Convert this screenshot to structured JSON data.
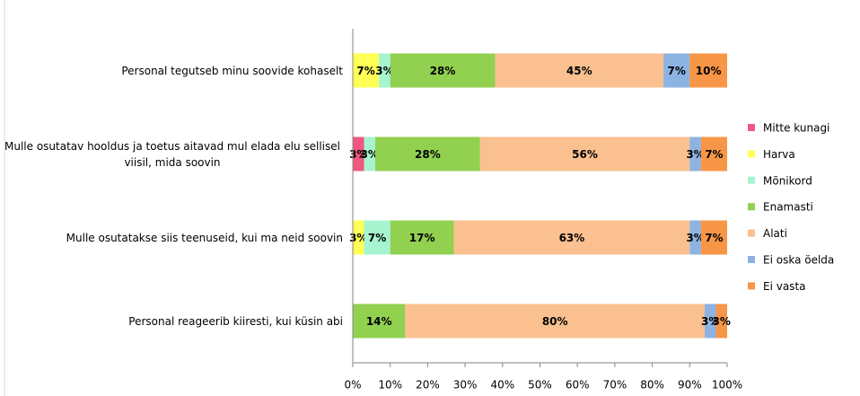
{
  "chart_data": {
    "type": "stacked_barh",
    "categories": [
      "Personal tegutseb minu soovide kohaselt",
      "Mulle osutatav hooldus ja toetus aitavad mul elada elu sellisel viisil, mida soovin",
      "Mulle osutatakse siis teenuseid, kui ma neid soovin",
      "Personal reageerib kiiresti, kui küsin abi"
    ],
    "series": [
      {
        "name": "Mitte kunagi",
        "color": "#f0587f",
        "values": [
          null,
          3,
          null,
          null
        ],
        "value_labels": [
          null,
          "3%",
          null,
          null
        ]
      },
      {
        "name": "Harva",
        "color": "#ffff55",
        "values": [
          7,
          null,
          3,
          null
        ],
        "value_labels": [
          "7%",
          null,
          "3%",
          null
        ]
      },
      {
        "name": "Mõnikord",
        "color": "#a6f5d0",
        "values": [
          3,
          3,
          7,
          null
        ],
        "value_labels": [
          "3%",
          "3%",
          "7%",
          null
        ]
      },
      {
        "name": "Enamasti",
        "color": "#92d050",
        "values": [
          28,
          28,
          17,
          14
        ],
        "value_labels": [
          "28%",
          "28%",
          "17%",
          "14%"
        ]
      },
      {
        "name": "Alati",
        "color": "#fac090",
        "values": [
          45,
          56,
          63,
          80
        ],
        "value_labels": [
          "45%",
          "56%",
          "63%",
          "80%"
        ]
      },
      {
        "name": "Ei oska öelda",
        "color": "#8db3e2",
        "values": [
          7,
          3,
          3,
          3
        ],
        "value_labels": [
          "7%",
          "3%",
          "3%",
          "3%"
        ]
      },
      {
        "name": "Ei vasta",
        "color": "#f79646",
        "values": [
          10,
          7,
          7,
          3
        ],
        "value_labels": [
          "10%",
          "7%",
          "7%",
          "3%"
        ]
      }
    ],
    "xlim": [
      0,
      100
    ],
    "xticks": [
      {
        "value": 0,
        "label": "0%"
      },
      {
        "value": 10,
        "label": "10%"
      },
      {
        "value": 20,
        "label": "20%"
      },
      {
        "value": 30,
        "label": "30%"
      },
      {
        "value": 40,
        "label": "40%"
      },
      {
        "value": 50,
        "label": "50%"
      },
      {
        "value": 60,
        "label": "60%"
      },
      {
        "value": 70,
        "label": "70%"
      },
      {
        "value": 80,
        "label": "80%"
      },
      {
        "value": 90,
        "label": "90%"
      },
      {
        "value": 100,
        "label": "100%"
      }
    ],
    "legend": "right"
  }
}
